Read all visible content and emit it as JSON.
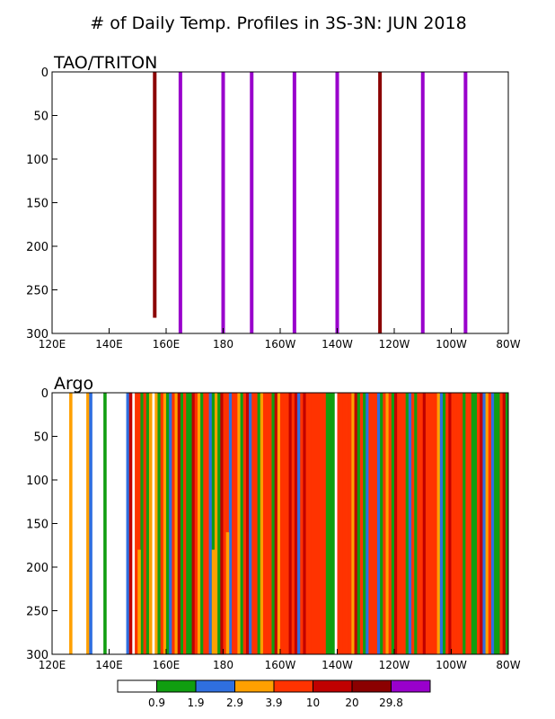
{
  "figure_title": "# of Daily Temp. Profiles in 3S-3N: JUN 2018",
  "chart_data": [
    {
      "type": "bar",
      "panel_label": "TAO/TRITON",
      "orientation": "vertical-depth",
      "x_ticks": [
        "120E",
        "140E",
        "160E",
        "180",
        "160W",
        "140W",
        "120W",
        "100W",
        "80W"
      ],
      "x_tick_values": [
        120,
        140,
        160,
        180,
        200,
        220,
        240,
        260,
        280
      ],
      "xlim": [
        120,
        280
      ],
      "y_ticks": [
        "0",
        "50",
        "100",
        "150",
        "200",
        "250",
        "300"
      ],
      "y_tick_values": [
        0,
        50,
        100,
        150,
        200,
        250,
        300
      ],
      "ylim": [
        0,
        300
      ],
      "profiles": [
        {
          "lon": 156,
          "depth": 282,
          "color": "#8b0000"
        },
        {
          "lon": 165,
          "depth": 300,
          "color": "#9900cc"
        },
        {
          "lon": 180,
          "depth": 300,
          "color": "#9900cc"
        },
        {
          "lon": 190,
          "depth": 300,
          "color": "#9900cc"
        },
        {
          "lon": 205,
          "depth": 300,
          "color": "#9900cc"
        },
        {
          "lon": 220,
          "depth": 300,
          "color": "#9900cc"
        },
        {
          "lon": 235,
          "depth": 300,
          "color": "#8b0000"
        },
        {
          "lon": 250,
          "depth": 300,
          "color": "#9900cc"
        },
        {
          "lon": 265,
          "depth": 300,
          "color": "#9900cc"
        }
      ]
    },
    {
      "type": "heatmap",
      "panel_label": "Argo",
      "x_ticks": [
        "120E",
        "140E",
        "160E",
        "180",
        "160W",
        "140W",
        "120W",
        "100W",
        "80W"
      ],
      "x_tick_values": [
        120,
        140,
        160,
        180,
        200,
        220,
        240,
        260,
        280
      ],
      "xlim": [
        120,
        280
      ],
      "y_ticks": [
        "0",
        "50",
        "100",
        "150",
        "200",
        "250",
        "300"
      ],
      "y_tick_values": [
        0,
        50,
        100,
        150,
        200,
        250,
        300
      ],
      "ylim": [
        0,
        300
      ],
      "lon_bin_width": 1,
      "color_class_by_lon": [
        0,
        0,
        0,
        0,
        0,
        0,
        3,
        0,
        0,
        0,
        0,
        0,
        3,
        2,
        0,
        0,
        0,
        0,
        1,
        0,
        0,
        0,
        0,
        0,
        0,
        0,
        2,
        5,
        0,
        4,
        4,
        1,
        4,
        1,
        3,
        0,
        3,
        1,
        4,
        3,
        1,
        2,
        4,
        3,
        5,
        1,
        4,
        1,
        1,
        5,
        4,
        3,
        1,
        4,
        4,
        2,
        1,
        3,
        1,
        5,
        4,
        4,
        2,
        4,
        4,
        3,
        1,
        4,
        5,
        2,
        4,
        4,
        1,
        3,
        4,
        4,
        4,
        1,
        5,
        3,
        4,
        4,
        4,
        5,
        4,
        5,
        2,
        4,
        5,
        4,
        4,
        4,
        4,
        4,
        4,
        4,
        1,
        1,
        1,
        0,
        4,
        4,
        4,
        4,
        4,
        3,
        5,
        1,
        4,
        1,
        2,
        4,
        4,
        4,
        2,
        1,
        4,
        3,
        4,
        1,
        5,
        4,
        4,
        4,
        1,
        2,
        4,
        1,
        4,
        4,
        5,
        4,
        4,
        4,
        4,
        3,
        2,
        1,
        4,
        5,
        4,
        4,
        4,
        4,
        1,
        4,
        4,
        1,
        1,
        4,
        5,
        2,
        3,
        4,
        2,
        1,
        1,
        4,
        5,
        1
      ],
      "partial_columns": [
        {
          "lon": 150,
          "from": 180,
          "to": 300,
          "color_class": 3
        },
        {
          "lon": 176,
          "from": 180,
          "to": 300,
          "color_class": 3
        },
        {
          "lon": 181,
          "from": 160,
          "to": 300,
          "color_class": 3
        }
      ]
    }
  ],
  "colorbar": {
    "labels": [
      "0.9",
      "1.9",
      "2.9",
      "3.9",
      "10",
      "20",
      "29.8"
    ],
    "colors": [
      "#ffffff",
      "#109e10",
      "#2f6fe0",
      "#ffa000",
      "#ff3300",
      "#c00000",
      "#8b0000",
      "#9900cc"
    ]
  }
}
